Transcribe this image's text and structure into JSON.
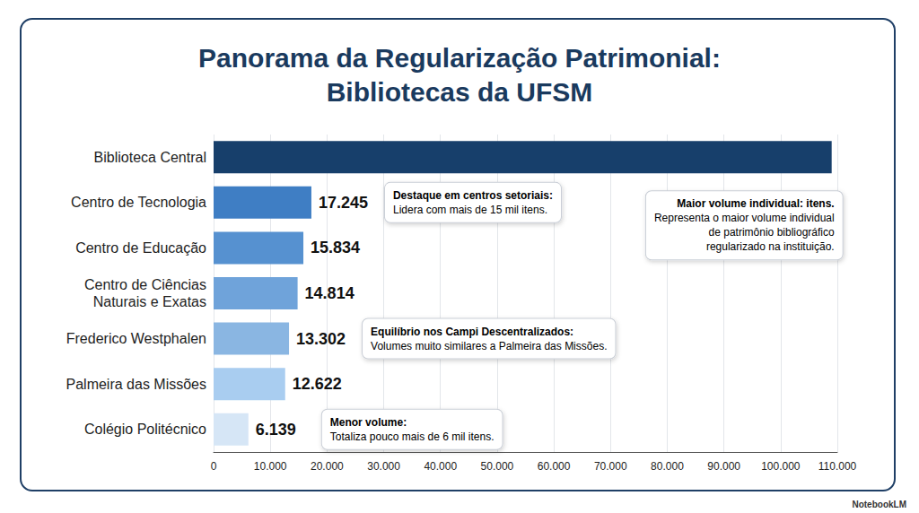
{
  "chart_data": {
    "type": "bar",
    "orientation": "horizontal",
    "title": "Panorama da Regularização Patrimonial: Bibliotecas da UFSM",
    "categories": [
      "Biblioteca Central",
      "Centro de Tecnologia",
      "Centro de Educação",
      "Centro de Ciências Naturais e Exatas",
      "Frederico Westphalen",
      "Palmeira das Missões",
      "Colégio Politécnico"
    ],
    "values": [
      109000,
      17245,
      15834,
      14814,
      13302,
      12622,
      6139
    ],
    "value_labels": [
      null,
      "17.245",
      "15.834",
      "14.814",
      "13.302",
      "12.622",
      "6.139"
    ],
    "colors": [
      "#173f6b",
      "#3f7ec4",
      "#5691d0",
      "#6fa3da",
      "#8ab6e2",
      "#a9cdf0",
      "#d6e6f6"
    ],
    "data_labels": true,
    "xlim": [
      0,
      110000
    ],
    "xticks": [
      0,
      {
        "value": 10000,
        "label": "10.000"
      },
      {
        "value": 20000,
        "label": "20.000"
      },
      {
        "value": 30000,
        "label": "30.000"
      },
      {
        "value": 40000,
        "label": "40.000"
      },
      {
        "value": 50000,
        "label": "50.000"
      },
      {
        "value": 60000,
        "label": "60.000"
      },
      {
        "value": 70000,
        "label": "70.000"
      },
      {
        "value": 80000,
        "label": "80.000"
      },
      {
        "value": 90000,
        "label": "90.000"
      },
      {
        "value": 100000,
        "label": "100.000"
      },
      {
        "value": 110000,
        "label": "110.000"
      }
    ],
    "grid": true,
    "annotations": [
      {
        "category": "Biblioteca Central",
        "title": "Maior volume individual: itens.",
        "text": "Representa o maior volume individual de patrimônio bibliográfico regularizado na instituição."
      },
      {
        "category": "Centro de Tecnologia",
        "title": "Destaque em centros setoriais:",
        "text": "Lidera com mais de 15 mil itens."
      },
      {
        "category": "Frederico Westphalen",
        "title": "Equilíbrio nos Campi Descentralizados:",
        "text": "Volumes muito similares a Palmeira das Missões."
      },
      {
        "category": "Colégio Politécnico",
        "title": "Menor volume:",
        "text": "Totaliza pouco mais de 6 mil itens."
      }
    ],
    "footer": "NotebookLM"
  }
}
